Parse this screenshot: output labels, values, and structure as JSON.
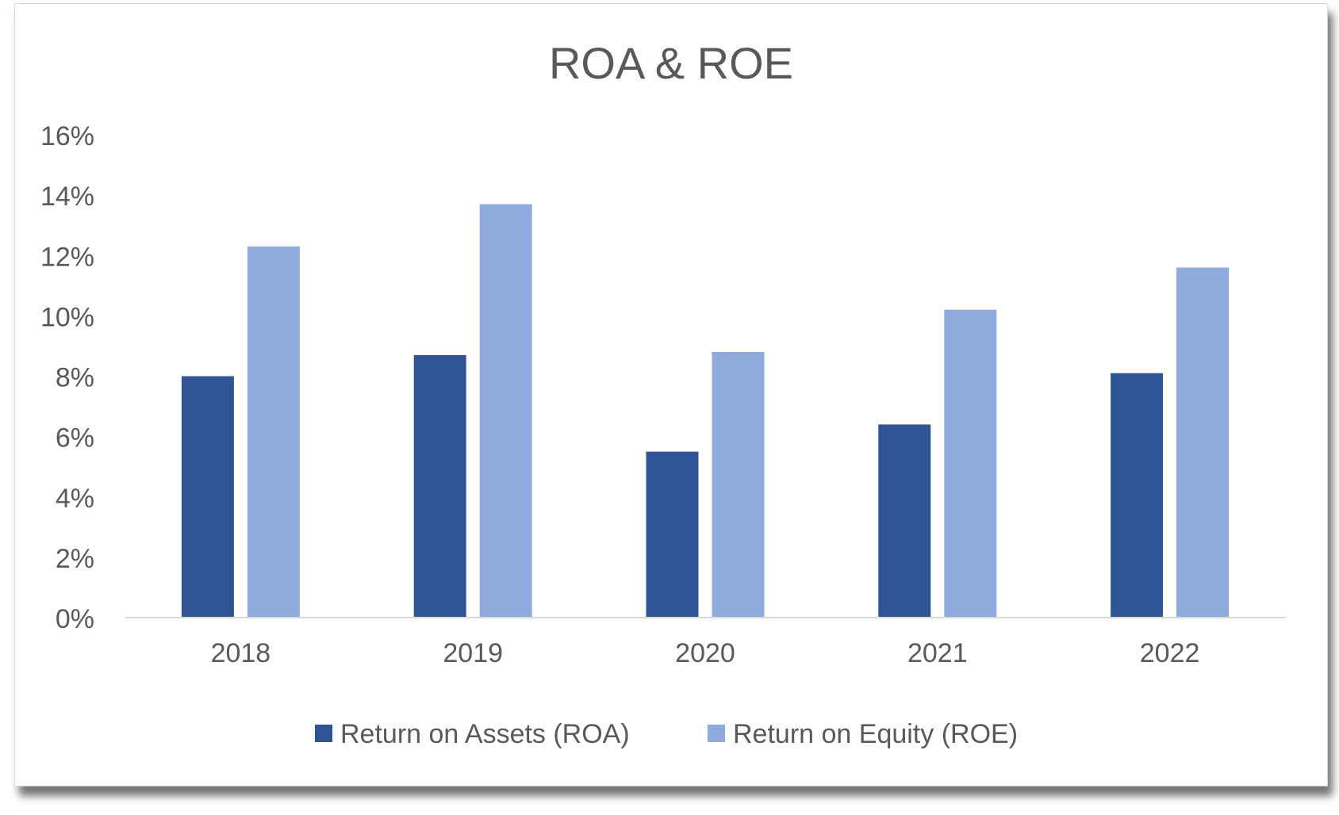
{
  "chart_data": {
    "type": "bar",
    "title": "ROA & ROE",
    "xlabel": "",
    "ylabel": "",
    "categories": [
      "2018",
      "2019",
      "2020",
      "2021",
      "2022"
    ],
    "series": [
      {
        "name": "Return on Assets (ROA)",
        "values": [
          8.0,
          8.7,
          5.5,
          6.4,
          8.1
        ],
        "color": "#2F5597"
      },
      {
        "name": "Return on Equity (ROE)",
        "values": [
          12.3,
          13.7,
          8.8,
          10.2,
          11.6
        ],
        "color": "#8FAADC"
      }
    ],
    "yticks": [
      "0%",
      "2%",
      "4%",
      "6%",
      "8%",
      "10%",
      "12%",
      "14%",
      "16%"
    ],
    "ylim": [
      0,
      16
    ],
    "grid": false,
    "legend": "bottom"
  }
}
